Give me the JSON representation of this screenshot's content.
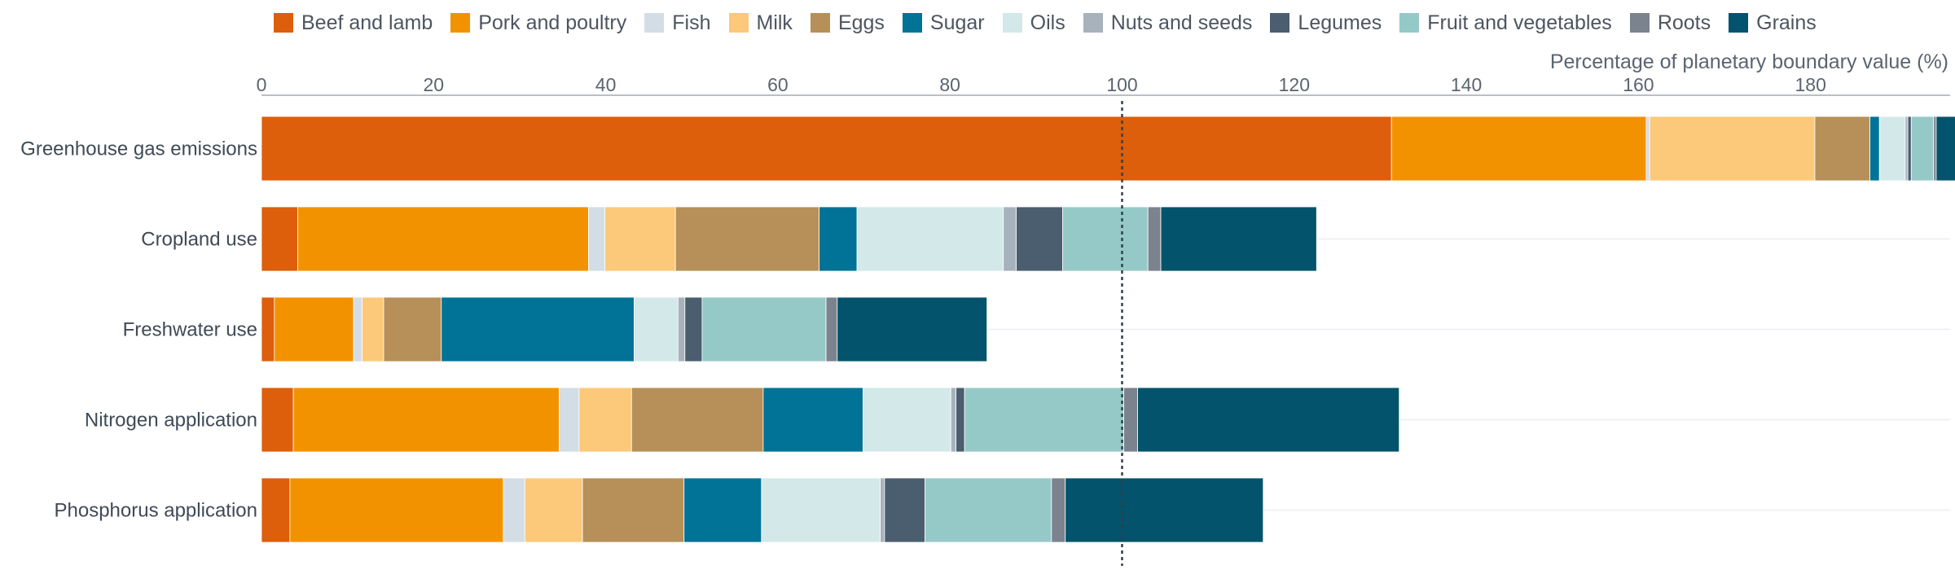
{
  "chart_data": {
    "type": "bar",
    "orientation": "horizontal",
    "stacked": true,
    "xlabel": "Percentage of planetary boundary value (%)",
    "xlim": [
      0,
      197
    ],
    "xticks": [
      0,
      20,
      40,
      60,
      80,
      100,
      120,
      140,
      160,
      180
    ],
    "reference_line": 100,
    "legend_position": "top",
    "categories": [
      "Greenhouse gas emissions",
      "Cropland use",
      "Freshwater use",
      "Nitrogen application",
      "Phosphorus application"
    ],
    "series": [
      {
        "name": "Beef and lamb",
        "color": "#dd5e0b",
        "values": [
          131.3,
          4.2,
          1.5,
          3.7,
          3.3
        ]
      },
      {
        "name": "Pork and poultry",
        "color": "#f39200",
        "values": [
          29.6,
          33.8,
          9.2,
          30.9,
          24.8
        ]
      },
      {
        "name": "Fish",
        "color": "#d3dde6",
        "values": [
          0.4,
          1.9,
          1.0,
          2.3,
          2.5
        ]
      },
      {
        "name": "Milk",
        "color": "#fcc879",
        "values": [
          19.2,
          8.2,
          2.5,
          6.1,
          6.7
        ]
      },
      {
        "name": "Eggs",
        "color": "#b69058",
        "values": [
          6.4,
          16.7,
          6.7,
          15.3,
          11.8
        ]
      },
      {
        "name": "Sugar",
        "color": "#007396",
        "values": [
          1.1,
          4.4,
          22.4,
          11.6,
          9.0
        ]
      },
      {
        "name": "Oils",
        "color": "#d3e8e8",
        "values": [
          3.0,
          17.0,
          5.1,
          10.2,
          13.8
        ]
      },
      {
        "name": "Nuts and seeds",
        "color": "#a7b2bc",
        "values": [
          0.3,
          1.5,
          0.8,
          0.6,
          0.5
        ]
      },
      {
        "name": "Legumes",
        "color": "#4a5e6f",
        "values": [
          0.4,
          5.4,
          2.0,
          1.0,
          4.7
        ]
      },
      {
        "name": "Fruit and vegetables",
        "color": "#95c9c8",
        "values": [
          2.6,
          9.9,
          14.4,
          18.5,
          14.7
        ]
      },
      {
        "name": "Roots",
        "color": "#7b838e",
        "values": [
          0.3,
          1.5,
          1.3,
          1.6,
          1.6
        ]
      },
      {
        "name": "Grains",
        "color": "#02536b",
        "values": [
          2.6,
          18.1,
          17.4,
          30.4,
          23.0
        ]
      }
    ]
  }
}
